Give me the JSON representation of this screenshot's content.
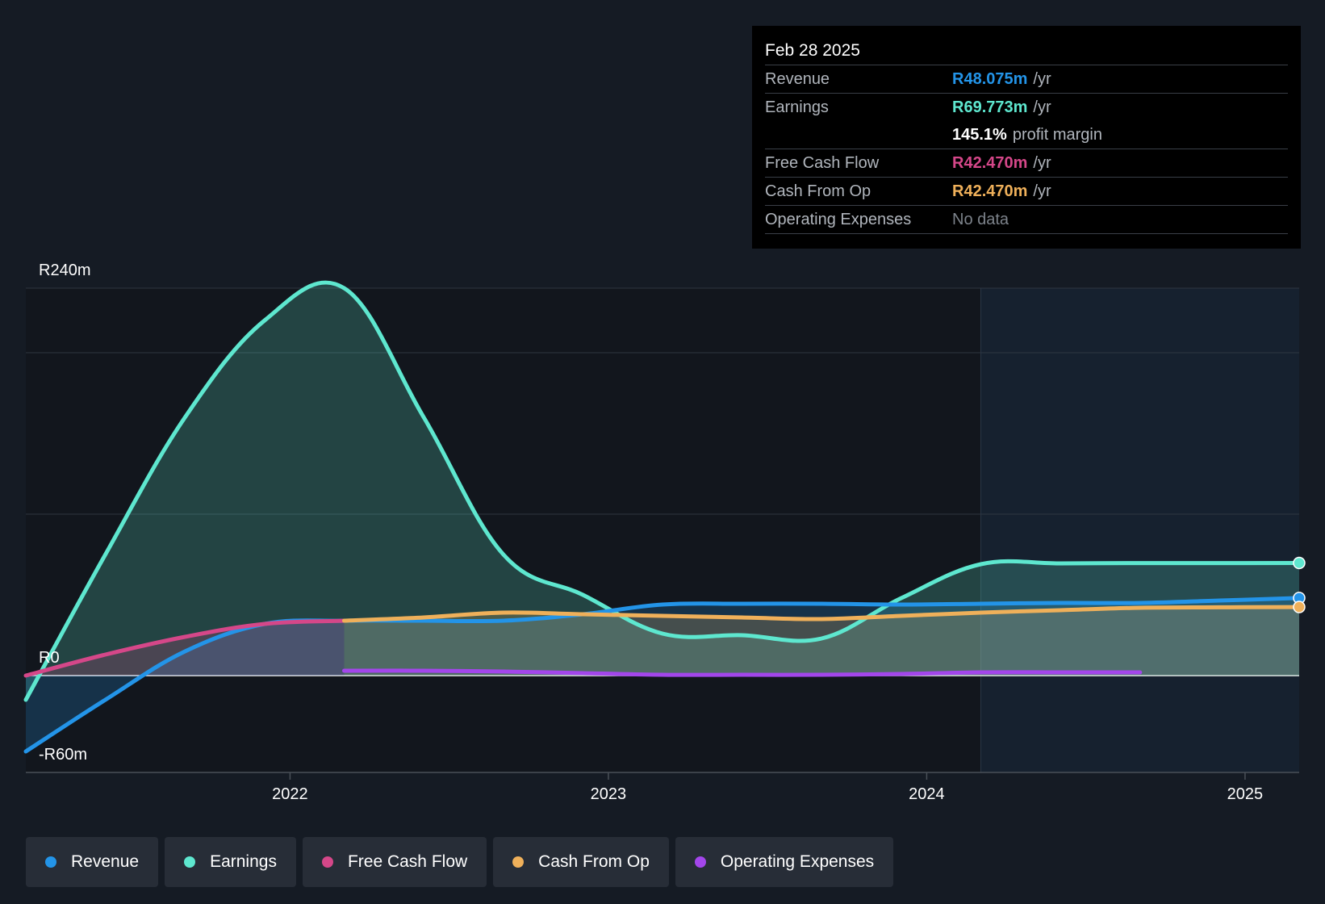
{
  "tooltip": {
    "date": "Feb 28 2025",
    "rows": [
      {
        "label": "Revenue",
        "value": "R48.075m",
        "unit": "/yr",
        "color": "#2394e8"
      },
      {
        "label": "Earnings",
        "value": "R69.773m",
        "unit": "/yr",
        "color": "#5ee7cf"
      },
      {
        "label": "",
        "value": "145.1%",
        "unit": "profit margin",
        "color": "#ffffff"
      },
      {
        "label": "Free Cash Flow",
        "value": "R42.470m",
        "unit": "/yr",
        "color": "#d54789"
      },
      {
        "label": "Cash From Op",
        "value": "R42.470m",
        "unit": "/yr",
        "color": "#efb05a"
      },
      {
        "label": "Operating Expenses",
        "value": "No data",
        "unit": "",
        "color": "#7d838b"
      }
    ]
  },
  "legend": [
    {
      "label": "Revenue",
      "color": "#2394e8"
    },
    {
      "label": "Earnings",
      "color": "#5ee7cf"
    },
    {
      "label": "Free Cash Flow",
      "color": "#d54789"
    },
    {
      "label": "Cash From Op",
      "color": "#efb05a"
    },
    {
      "label": "Operating Expenses",
      "color": "#a346eb"
    }
  ],
  "chart_data": {
    "type": "line",
    "title": "",
    "xlabel": "",
    "ylabel": "",
    "y_axis_labels": [
      "R240m",
      "R0",
      "-R60m"
    ],
    "ylim": [
      -60,
      240
    ],
    "xlim": [
      2021.17,
      2025.17
    ],
    "x_ticks": [
      2022,
      2023,
      2024,
      2025
    ],
    "x_tick_labels": [
      "2022",
      "2023",
      "2024",
      "2025"
    ],
    "forecast_region_start": 2024.17,
    "series": [
      {
        "name": "Earnings",
        "color": "#5ee7cf",
        "fill": true,
        "x": [
          2021.17,
          2021.42,
          2021.67,
          2021.92,
          2022.17,
          2022.42,
          2022.67,
          2022.92,
          2023.17,
          2023.42,
          2023.67,
          2023.92,
          2024.17,
          2024.42,
          2024.67,
          2024.92,
          2025.17
        ],
        "y": [
          -15,
          75,
          160,
          220,
          240,
          160,
          75,
          50,
          26,
          25,
          23,
          48,
          69,
          69.5,
          69.7,
          69.7,
          69.773
        ]
      },
      {
        "name": "Revenue",
        "color": "#2394e8",
        "fill": true,
        "x": [
          2021.17,
          2021.42,
          2021.67,
          2021.92,
          2022.17,
          2022.42,
          2022.67,
          2022.92,
          2023.17,
          2023.42,
          2023.67,
          2023.92,
          2024.17,
          2024.42,
          2024.67,
          2024.92,
          2025.17
        ],
        "y": [
          -47,
          -15,
          15,
          32,
          34,
          34,
          34,
          38,
          44,
          44.5,
          44.5,
          44,
          44.5,
          45,
          45,
          46.5,
          48.075
        ]
      },
      {
        "name": "Free Cash Flow",
        "color": "#d54789",
        "fill": true,
        "x": [
          2021.17,
          2021.42,
          2021.67,
          2021.92,
          2022.17
        ],
        "y": [
          0,
          13,
          24,
          32,
          34
        ]
      },
      {
        "name": "Cash From Op",
        "color": "#efb05a",
        "fill": true,
        "x": [
          2022.17,
          2022.42,
          2022.67,
          2022.92,
          2023.17,
          2023.42,
          2023.67,
          2023.92,
          2024.17,
          2024.42,
          2024.67,
          2024.92,
          2025.17
        ],
        "y": [
          34,
          36,
          39,
          38,
          37,
          36,
          35,
          37,
          39,
          40.5,
          42,
          42.3,
          42.47
        ]
      },
      {
        "name": "Operating Expenses",
        "color": "#a346eb",
        "fill": false,
        "x": [
          2022.17,
          2022.42,
          2022.67,
          2022.92,
          2023.17,
          2023.42,
          2023.67,
          2023.92,
          2024.17,
          2024.42,
          2024.67
        ],
        "y": [
          3,
          3,
          2.5,
          1.5,
          0.5,
          0.5,
          0.5,
          1,
          2,
          2,
          2
        ]
      }
    ]
  }
}
